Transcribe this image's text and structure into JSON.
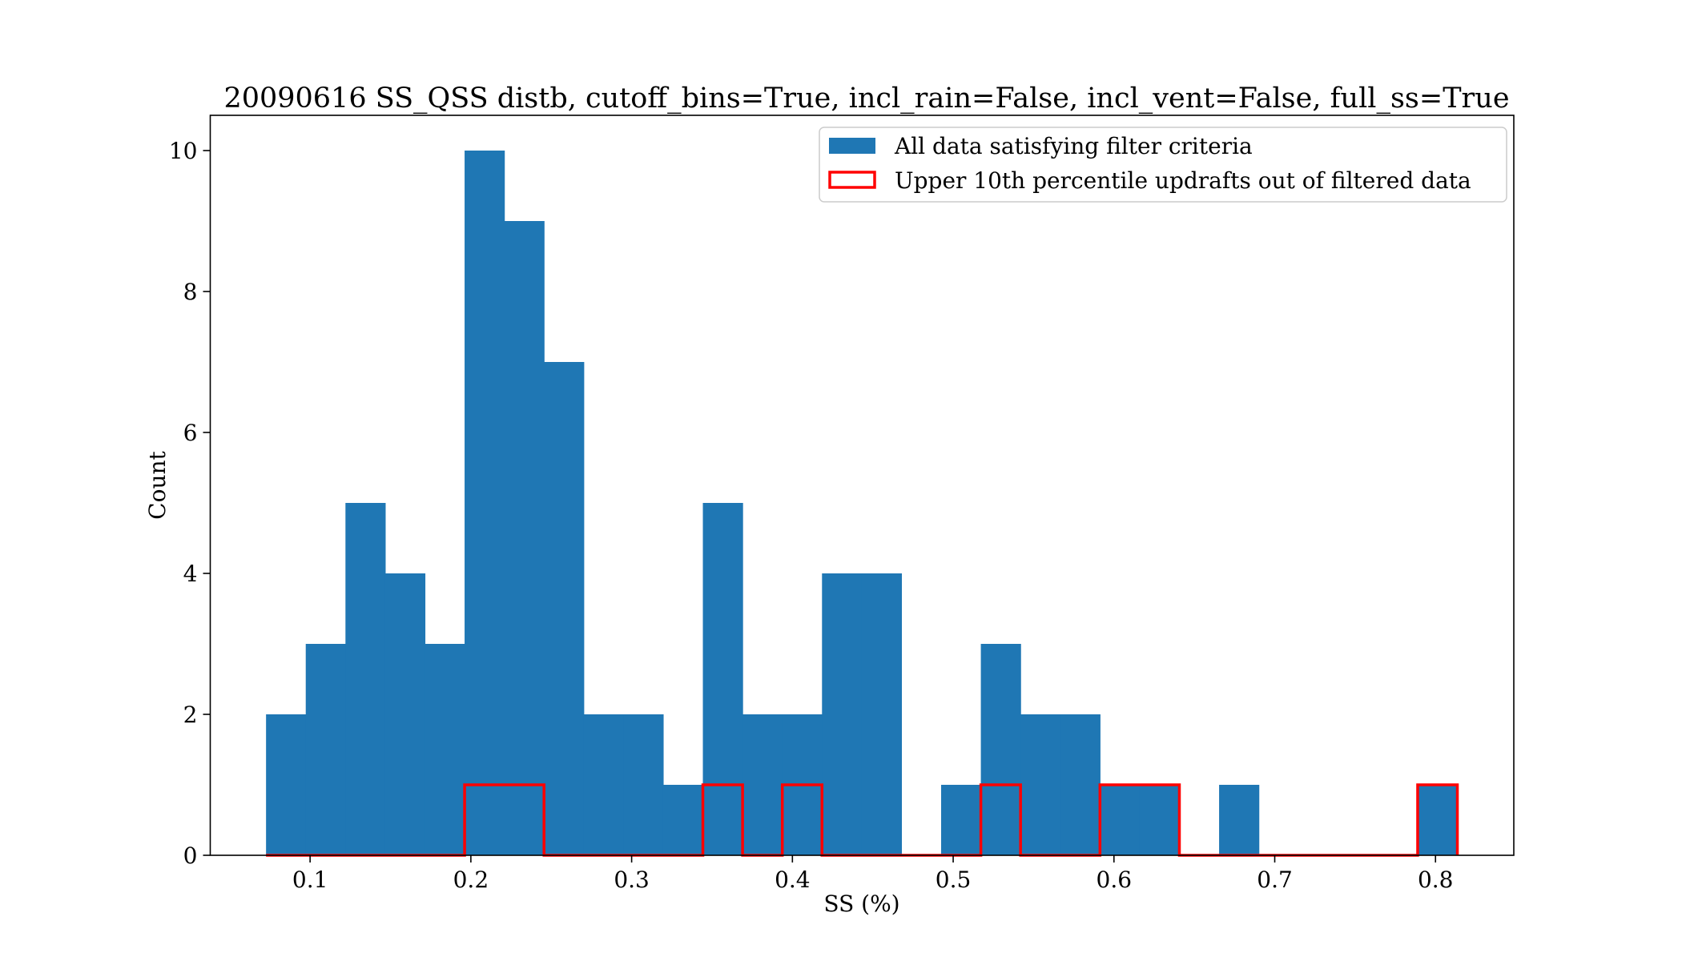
{
  "chart_data": {
    "type": "bar",
    "title": "20090616 SS_QSS distb, cutoff_bins=True, incl_rain=False, incl_vent=False, full_ss=True",
    "xlabel": "SS (%)",
    "ylabel": "Count",
    "xlim": [
      0.0379,
      0.8487
    ],
    "ylim": [
      0,
      10.5
    ],
    "x_ticks": [
      0.1,
      0.2,
      0.3,
      0.4,
      0.5,
      0.6,
      0.7,
      0.8
    ],
    "x_tick_labels": [
      "0.1",
      "0.2",
      "0.3",
      "0.4",
      "0.5",
      "0.6",
      "0.7",
      "0.8"
    ],
    "y_ticks": [
      0,
      2,
      4,
      6,
      8,
      10
    ],
    "y_tick_labels": [
      "0",
      "2",
      "4",
      "6",
      "8",
      "10"
    ],
    "grid": false,
    "legend_position": "top-right",
    "bin_edges": [
      0.0726,
      0.0973,
      0.122,
      0.1467,
      0.1714,
      0.1961,
      0.2208,
      0.2455,
      0.2702,
      0.2949,
      0.3196,
      0.3443,
      0.369,
      0.3937,
      0.4184,
      0.4431,
      0.4678,
      0.4925,
      0.5172,
      0.5419,
      0.5666,
      0.5913,
      0.616,
      0.6407,
      0.6654,
      0.6901,
      0.7148,
      0.7395,
      0.7642,
      0.7889,
      0.8136
    ],
    "series": [
      {
        "name": "All data satisfying filter criteria",
        "style": "filled",
        "color": "#1f77b4",
        "values": [
          2,
          3,
          5,
          4,
          3,
          10,
          9,
          7,
          2,
          2,
          1,
          5,
          2,
          2,
          4,
          4,
          0,
          1,
          3,
          2,
          2,
          1,
          1,
          0,
          1,
          0,
          0,
          0,
          0,
          1
        ]
      },
      {
        "name": "Upper 10th percentile updrafts out of filtered data",
        "style": "step-outline",
        "color": "#ff0000",
        "values": [
          0,
          0,
          0,
          0,
          0,
          1,
          1,
          0,
          0,
          0,
          0,
          1,
          0,
          1,
          0,
          0,
          0,
          0,
          1,
          0,
          0,
          1,
          1,
          0,
          0,
          0,
          0,
          0,
          0,
          1
        ]
      }
    ]
  }
}
